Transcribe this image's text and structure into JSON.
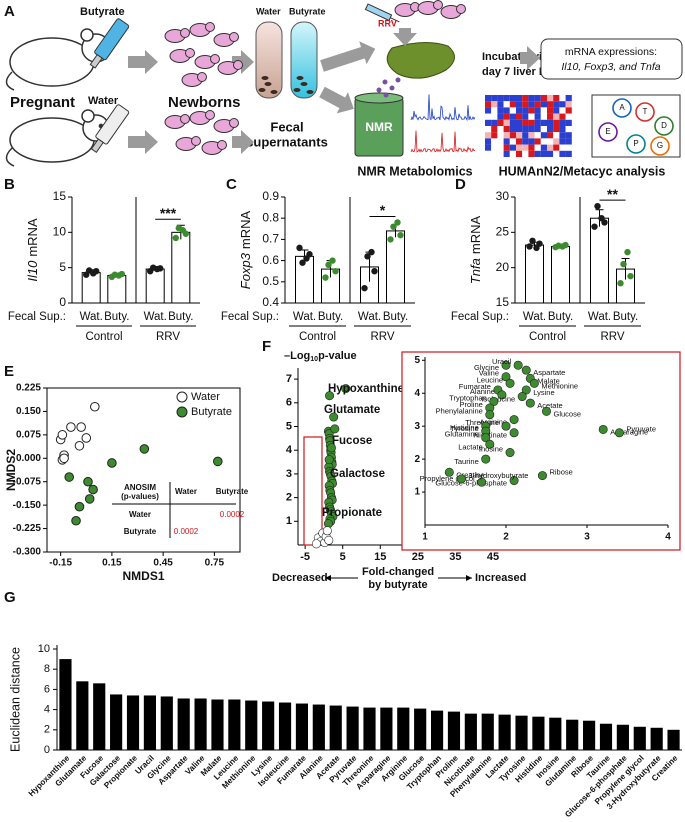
{
  "figure_a": {
    "label": "A",
    "top_bottle": "Butyrate",
    "bottom_bottle": "Water",
    "mother": "Pregnant",
    "pups": "Newborns",
    "tubes": [
      "Water",
      "Butyrate"
    ],
    "tubes_caption": [
      "Fecal",
      "supernatants"
    ],
    "virus": "RRV",
    "incubation": [
      "Incubate with",
      "day 7 liver MNCs"
    ],
    "mrna": [
      "mRNA expressions:",
      "Il10, Foxp3, and Tnfa"
    ],
    "nmr": "NMR",
    "nmr_caption": "NMR Metabolomics",
    "humann_caption": "HUMAnN2/Metacyc analysis",
    "pathway_nodes": [
      "A",
      "T",
      "D",
      "E",
      "P",
      "G"
    ]
  },
  "chart_data": [
    {
      "panel": "B",
      "type": "bar",
      "ylabel": [
        "Il10",
        "mRNA"
      ],
      "xlabel": "Fecal Sup.:",
      "groups": [
        "Control",
        "RRV"
      ],
      "categories": [
        "Wat.",
        "Buty.",
        "Wat.",
        "Buty."
      ],
      "values": [
        4.3,
        3.9,
        4.8,
        10.0
      ],
      "errors": [
        0.4,
        0.2,
        0.3,
        1.0
      ],
      "points": [
        [
          4.0,
          4.6,
          4.2,
          4.5
        ],
        [
          3.7,
          4.0,
          3.9,
          4.1
        ],
        [
          4.5,
          5.0,
          4.8,
          4.9
        ],
        [
          9.2,
          10.6,
          10.3,
          9.8
        ]
      ],
      "point_colors": [
        "#1a1a1a",
        "#3d8b2f",
        "#1a1a1a",
        "#3d8b2f"
      ],
      "color": "#ffffff",
      "ylim": [
        0,
        15
      ],
      "yticks": [
        0,
        5,
        10,
        15
      ],
      "significance": "***"
    },
    {
      "panel": "C",
      "type": "bar",
      "ylabel": [
        "Foxp3",
        "mRNA"
      ],
      "xlabel": "Fecal Sup.:",
      "groups": [
        "Control",
        "RRV"
      ],
      "categories": [
        "Wat.",
        "Buty.",
        "Wat.",
        "Buty."
      ],
      "values": [
        0.62,
        0.56,
        0.57,
        0.74
      ],
      "errors": [
        0.03,
        0.04,
        0.07,
        0.03
      ],
      "points": [
        [
          0.66,
          0.59,
          0.61,
          0.63
        ],
        [
          0.52,
          0.58,
          0.6,
          0.55
        ],
        [
          0.47,
          0.62,
          0.64,
          0.55
        ],
        [
          0.7,
          0.76,
          0.78,
          0.72
        ]
      ],
      "point_colors": [
        "#1a1a1a",
        "#3d8b2f",
        "#1a1a1a",
        "#3d8b2f"
      ],
      "color": "#ffffff",
      "ylim": [
        0.4,
        0.9
      ],
      "yticks": [
        0.4,
        0.5,
        0.6,
        0.7,
        0.8,
        0.9
      ],
      "significance": "*"
    },
    {
      "panel": "D",
      "type": "bar",
      "ylabel": [
        "Tnfa",
        "mRNA"
      ],
      "xlabel": "Fecal Sup.:",
      "groups": [
        "Control",
        "RRV"
      ],
      "categories": [
        "Wat.",
        "Buty.",
        "Wat.",
        "Buty."
      ],
      "values": [
        23.2,
        23.0,
        27.0,
        19.8
      ],
      "errors": [
        0.4,
        0.2,
        1.2,
        1.5
      ],
      "points": [
        [
          23.0,
          23.8,
          22.8,
          23.4
        ],
        [
          22.9,
          23.1,
          23.0,
          23.2
        ],
        [
          25.8,
          28.7,
          27.0,
          26.4
        ],
        [
          17.8,
          20.5,
          22.2,
          18.8
        ]
      ],
      "point_colors": [
        "#1a1a1a",
        "#3d8b2f",
        "#1a1a1a",
        "#3d8b2f"
      ],
      "color": "#ffffff",
      "ylim": [
        15,
        30
      ],
      "yticks": [
        15,
        20,
        25,
        30
      ],
      "significance": "**"
    },
    {
      "panel": "E",
      "type": "scatter",
      "xlabel": "NMDS1",
      "ylabel": "NMDS2",
      "xlim": [
        -0.23,
        0.9
      ],
      "xticks": [
        -0.15,
        0.15,
        0.45,
        0.75
      ],
      "ylim": [
        -0.3,
        0.225
      ],
      "yticks": [
        {
          "value": 0.225,
          "label": "0.225"
        },
        {
          "value": 0.15,
          "label": "0.150"
        },
        {
          "value": 0.075,
          "label": "0.075"
        },
        {
          "value": 0,
          "label": "0.000"
        },
        {
          "value": -0.075,
          "label": "-0.075"
        },
        {
          "value": -0.15,
          "label": "-0.150"
        },
        {
          "value": -0.225,
          "label": "-0.225"
        },
        {
          "value": -0.3,
          "label": "-0.300"
        }
      ],
      "legend": "upper right",
      "series": [
        {
          "name": "Water",
          "color": "#ffffff",
          "x": [
            -0.15,
            -0.14,
            -0.13,
            -0.14,
            -0.13,
            -0.09,
            -0.04,
            -0.03,
            0.0,
            0.05
          ],
          "y": [
            0.06,
            0.075,
            0.01,
            -0.005,
            0.0,
            0.1,
            0.04,
            0.1,
            0.065,
            0.165
          ]
        },
        {
          "name": "Butyrate",
          "color": "#3d8b2f",
          "x": [
            0.34,
            0.77,
            0.15,
            0.01,
            0.04,
            0.02,
            -0.04,
            -0.06,
            -0.1
          ],
          "y": [
            0.03,
            -0.01,
            -0.015,
            -0.075,
            -0.1,
            -0.13,
            -0.155,
            -0.2,
            -0.06
          ]
        }
      ],
      "table": {
        "title": [
          "ANOSIM",
          "(p-values)"
        ],
        "columns": [
          "Water",
          "Butyrate"
        ],
        "rows": [
          {
            "name": "Water",
            "values": [
              null,
              0.0002
            ]
          },
          {
            "name": "Butyrate",
            "values": [
              0.0002,
              null
            ]
          }
        ]
      }
    },
    {
      "panel": "F",
      "type": "scatter",
      "ylabel": [
        "–Log",
        "10",
        "p-value"
      ],
      "xlabel": [
        "Fold-changed",
        "by butyrate"
      ],
      "direction": [
        "Decreased",
        "Increased"
      ],
      "xlim": [
        -6.9,
        48.2
      ],
      "xticks": [
        -5,
        5,
        15,
        25,
        35,
        45
      ],
      "ylim": [
        0,
        7.3
      ],
      "yticks": [
        1,
        2,
        3,
        4,
        5,
        6,
        7
      ],
      "series": [
        {
          "name": "Increased",
          "color": "#3d8b2f",
          "x": [
            1.2,
            1.4,
            1.5,
            1.6,
            1.7,
            1.8,
            1.9,
            2.0,
            2.1,
            2.2,
            1.3,
            1.5,
            1.7,
            1.9,
            2.1,
            2.3,
            1.4,
            1.6,
            1.8,
            2.0,
            2.2,
            1.3,
            1.5,
            1.7,
            1.9,
            2.1,
            2.4,
            1.6,
            1.8,
            1.2,
            1.4,
            2.0,
            1.5,
            5.8,
            2.6,
            2.9
          ],
          "y": [
            4.8,
            4.7,
            4.5,
            4.4,
            4.2,
            4.0,
            3.9,
            3.7,
            3.5,
            3.4,
            3.3,
            3.1,
            3.0,
            2.9,
            2.7,
            2.6,
            2.5,
            2.3,
            2.2,
            2.0,
            1.9,
            1.8,
            1.6,
            1.5,
            1.4,
            1.3,
            1.2,
            1.1,
            1.0,
            0.9,
            3.6,
            4.1,
            6.3,
            6.6,
            5.4,
            4.9
          ]
        },
        {
          "name": "Decreased",
          "color": "#ffffff",
          "x": [
            -1.5,
            -0.8,
            -0.3,
            0.2,
            0.6,
            0.9,
            1.3,
            -2.0
          ],
          "y": [
            0.3,
            0.15,
            0.5,
            0.1,
            0.35,
            0.6,
            0.2,
            0.05
          ]
        }
      ],
      "annotations": [
        "Hypoxanthine",
        "Glutamate",
        "Fucose",
        "Galactose",
        "Propionate"
      ],
      "inset": {
        "xlim": [
          1,
          4
        ],
        "xticks": [
          1,
          2,
          3,
          4
        ],
        "ylim": [
          0,
          5.1
        ],
        "yticks": [
          1,
          2,
          3,
          4,
          5
        ],
        "color": "#3d8b2f",
        "names": [
          "Glycine",
          "Uracil",
          "Aspartate",
          "Valine",
          "Malate",
          "Leucine",
          "Methionine",
          "Fumarate",
          "Lysine",
          "Alanine",
          "Isoleucine",
          "Tryptophan",
          "Acetate",
          "Proline",
          "Glucose",
          "Phenylalanine",
          "Arginine",
          "Threonine",
          "Tyrosine",
          "Histidine",
          "Nicotinate",
          "Glutamine",
          "Asparagine",
          "Pyruvate",
          "Lactate",
          "Inosine",
          "Taurine",
          "Ribose",
          "Glucose-6-phosphate",
          "Propylene glycol",
          "Creatine",
          "3-hydroxybutyrate"
        ],
        "x": [
          2.0,
          2.15,
          2.25,
          2.0,
          2.3,
          2.05,
          2.35,
          1.9,
          2.25,
          1.95,
          2.2,
          1.85,
          2.3,
          1.8,
          2.5,
          1.8,
          2.1,
          2.0,
          1.75,
          1.75,
          2.1,
          1.75,
          3.2,
          3.4,
          1.8,
          2.05,
          1.75,
          2.45,
          2.1,
          1.7,
          1.3,
          1.45
        ],
        "y": [
          4.85,
          4.85,
          4.7,
          4.5,
          4.45,
          4.3,
          4.3,
          4.1,
          4.1,
          3.95,
          3.9,
          3.75,
          3.7,
          3.55,
          3.45,
          3.35,
          3.2,
          3.0,
          3.0,
          2.85,
          2.8,
          2.65,
          2.9,
          2.8,
          2.45,
          2.2,
          2.0,
          1.5,
          1.35,
          1.3,
          1.6,
          1.4
        ]
      }
    },
    {
      "panel": "G",
      "type": "bar",
      "ylabel": "Euclidean distance",
      "color": "#000000",
      "categories": [
        "Hypoxanthine",
        "Glutamate",
        "Fucose",
        "Galactose",
        "Propionate",
        "Uracil",
        "Glycine",
        "Aspartate",
        "Valine",
        "Malate",
        "Leucine",
        "Methionine",
        "Lysine",
        "Isoleucine",
        "Fumarate",
        "Alanine",
        "Acetate",
        "Pyruvate",
        "Threonine",
        "Asparagine",
        "Arginine",
        "Glucose",
        "Tryptophan",
        "Proline",
        "Nicotinate",
        "Phenylalanine",
        "Lactate",
        "Tyrosine",
        "Histidine",
        "Inosine",
        "Glutamine",
        "Ribose",
        "Taurine",
        "Glucose-6-phosphate",
        "Propylene glycol",
        "3-Hydroxybutyrate",
        "Creatine"
      ],
      "values": [
        9.0,
        6.8,
        6.6,
        5.5,
        5.4,
        5.4,
        5.3,
        5.1,
        5.1,
        5.0,
        5.0,
        4.9,
        4.8,
        4.7,
        4.6,
        4.5,
        4.4,
        4.3,
        4.2,
        4.2,
        4.2,
        4.1,
        3.9,
        3.8,
        3.6,
        3.6,
        3.5,
        3.4,
        3.3,
        3.2,
        3.0,
        2.9,
        2.6,
        2.5,
        2.3,
        2.2,
        2.0
      ],
      "ylim": [
        0,
        10
      ],
      "yticks": [
        0,
        2,
        4,
        6,
        8,
        10
      ]
    }
  ]
}
